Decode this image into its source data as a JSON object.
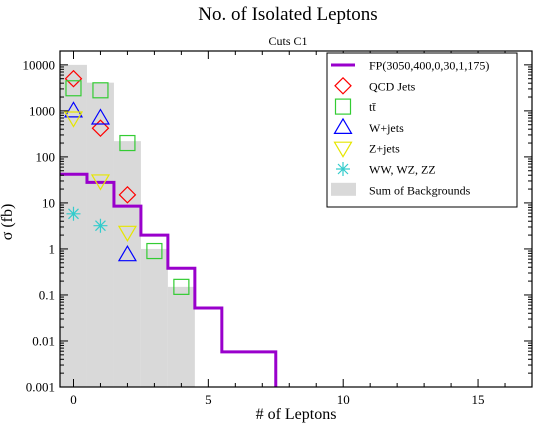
{
  "chart_data": {
    "type": "scatter",
    "title": "No. of Isolated Leptons",
    "subtitle": "Cuts C1",
    "xlabel": "# of Leptons",
    "ylabel": "σ (fb)",
    "xlim": [
      -0.5,
      17
    ],
    "ylim": [
      0.001,
      20000
    ],
    "yscale": "log",
    "grid": false,
    "legend_position": "top-right",
    "xticks": [
      0,
      5,
      10,
      15
    ],
    "xtick_labels": [
      "0",
      "5",
      "10",
      "15"
    ],
    "yticks": [
      0.001,
      0.01,
      0.1,
      1,
      10,
      100,
      1000,
      10000
    ],
    "ytick_labels": [
      "0.001",
      "0.01",
      "0.1",
      "1",
      "10",
      "100",
      "1000",
      "10000"
    ],
    "series": [
      {
        "name": "FP(3050,400,0,30,1,175)",
        "kind": "step",
        "color": "#9900cc",
        "x": [
          0,
          1,
          2,
          3,
          4,
          5,
          6,
          7
        ],
        "values": [
          42,
          28,
          8.5,
          2.0,
          0.38,
          0.052,
          0.0058,
          0.0058
        ]
      },
      {
        "name": "QCD Jets",
        "kind": "marker",
        "marker": "diamond",
        "color": "#ff0000",
        "x": [
          0,
          1,
          2
        ],
        "values": [
          5000,
          420,
          15
        ]
      },
      {
        "name": "tt̄",
        "kind": "marker",
        "marker": "square",
        "color": "#33cc33",
        "x": [
          0,
          1,
          2,
          3,
          4
        ],
        "values": [
          3100,
          2800,
          200,
          0.9,
          0.15
        ]
      },
      {
        "name": "W+jets",
        "kind": "marker",
        "marker": "triangle-up",
        "color": "#0000ff",
        "x": [
          0,
          1,
          2
        ],
        "values": [
          1000,
          700,
          0.75
        ]
      },
      {
        "name": "Z+jets",
        "kind": "marker",
        "marker": "triangle-down",
        "color": "#e6e600",
        "x": [
          0,
          1,
          2
        ],
        "values": [
          700,
          30,
          2.3
        ]
      },
      {
        "name": "WW, WZ, ZZ",
        "kind": "marker",
        "marker": "asterisk",
        "color": "#33cccc",
        "x": [
          0,
          1
        ],
        "values": [
          5.8,
          3.2
        ]
      },
      {
        "name": "Sum of Backgrounds",
        "kind": "histogram",
        "color": "#d9d9d9",
        "x": [
          0,
          1,
          2,
          3,
          4
        ],
        "values": [
          10000,
          4100,
          220,
          1.0,
          0.15
        ]
      }
    ]
  }
}
